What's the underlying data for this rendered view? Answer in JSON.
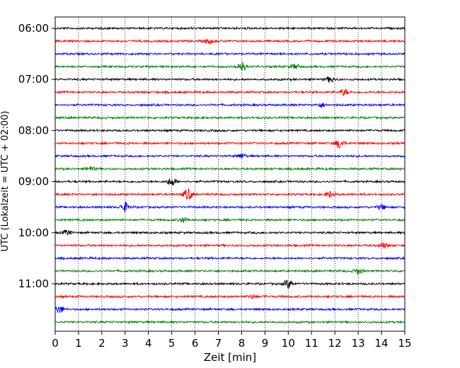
{
  "chart_data": {
    "type": "line",
    "title": "",
    "xlabel": "Zeit  [min]",
    "ylabel": "UTC (Lokalzeit = UTC + 02:00)",
    "xlim": [
      0,
      15
    ],
    "x_ticks": [
      "0",
      "1",
      "2",
      "3",
      "4",
      "5",
      "6",
      "7",
      "8",
      "9",
      "10",
      "11",
      "12",
      "13",
      "14",
      "15"
    ],
    "y_ticks": [
      "06:00",
      "07:00",
      "08:00",
      "09:00",
      "10:00",
      "11:00"
    ],
    "grid": "vertical-dotted",
    "trace_interval_minutes": 15,
    "first_trace_utc": "06:00",
    "trace_count": 24,
    "trace_colors": [
      "#000000",
      "#ff0000",
      "#0000ff",
      "#008000"
    ],
    "series": [
      {
        "start": "06:00",
        "color": "#000000",
        "events": []
      },
      {
        "start": "06:15",
        "color": "#ff0000",
        "events": [
          {
            "t": 6.6,
            "amp": 0.4
          }
        ]
      },
      {
        "start": "06:30",
        "color": "#0000ff",
        "events": []
      },
      {
        "start": "06:45",
        "color": "#008000",
        "events": [
          {
            "t": 8.0,
            "amp": 0.8
          },
          {
            "t": 10.3,
            "amp": 0.4
          }
        ]
      },
      {
        "start": "07:00",
        "color": "#000000",
        "events": [
          {
            "t": 11.8,
            "amp": 0.5
          }
        ]
      },
      {
        "start": "07:15",
        "color": "#ff0000",
        "events": [
          {
            "t": 12.4,
            "amp": 0.5
          }
        ]
      },
      {
        "start": "07:30",
        "color": "#0000ff",
        "events": [
          {
            "t": 11.4,
            "amp": 0.4
          }
        ]
      },
      {
        "start": "07:45",
        "color": "#008000",
        "events": []
      },
      {
        "start": "08:00",
        "color": "#000000",
        "events": []
      },
      {
        "start": "08:15",
        "color": "#ff0000",
        "events": [
          {
            "t": 12.2,
            "amp": 0.8
          }
        ]
      },
      {
        "start": "08:30",
        "color": "#0000ff",
        "events": [
          {
            "t": 8.0,
            "amp": 0.4
          }
        ]
      },
      {
        "start": "08:45",
        "color": "#008000",
        "events": [
          {
            "t": 1.5,
            "amp": 0.4
          }
        ]
      },
      {
        "start": "09:00",
        "color": "#000000",
        "events": [
          {
            "t": 5.0,
            "amp": 0.7
          }
        ]
      },
      {
        "start": "09:15",
        "color": "#ff0000",
        "events": [
          {
            "t": 5.7,
            "amp": 1.0
          },
          {
            "t": 11.8,
            "amp": 0.5
          }
        ]
      },
      {
        "start": "09:30",
        "color": "#0000ff",
        "events": [
          {
            "t": 3.0,
            "amp": 0.8
          },
          {
            "t": 14.0,
            "amp": 0.4
          }
        ]
      },
      {
        "start": "09:45",
        "color": "#008000",
        "events": [
          {
            "t": 5.5,
            "amp": 0.4
          }
        ]
      },
      {
        "start": "10:00",
        "color": "#000000",
        "events": [
          {
            "t": 0.5,
            "amp": 0.4
          }
        ]
      },
      {
        "start": "10:15",
        "color": "#ff0000",
        "events": [
          {
            "t": 14.1,
            "amp": 0.4
          }
        ]
      },
      {
        "start": "10:30",
        "color": "#0000ff",
        "events": []
      },
      {
        "start": "10:45",
        "color": "#008000",
        "events": [
          {
            "t": 13.0,
            "amp": 0.5
          }
        ]
      },
      {
        "start": "11:00",
        "color": "#000000",
        "events": [
          {
            "t": 10.0,
            "amp": 0.7
          }
        ]
      },
      {
        "start": "11:15",
        "color": "#ff0000",
        "events": [
          {
            "t": 8.5,
            "amp": 0.3
          }
        ]
      },
      {
        "start": "11:30",
        "color": "#0000ff",
        "events": [
          {
            "t": 0.2,
            "amp": 0.6
          }
        ]
      },
      {
        "start": "11:45",
        "color": "#008000",
        "events": []
      }
    ]
  }
}
